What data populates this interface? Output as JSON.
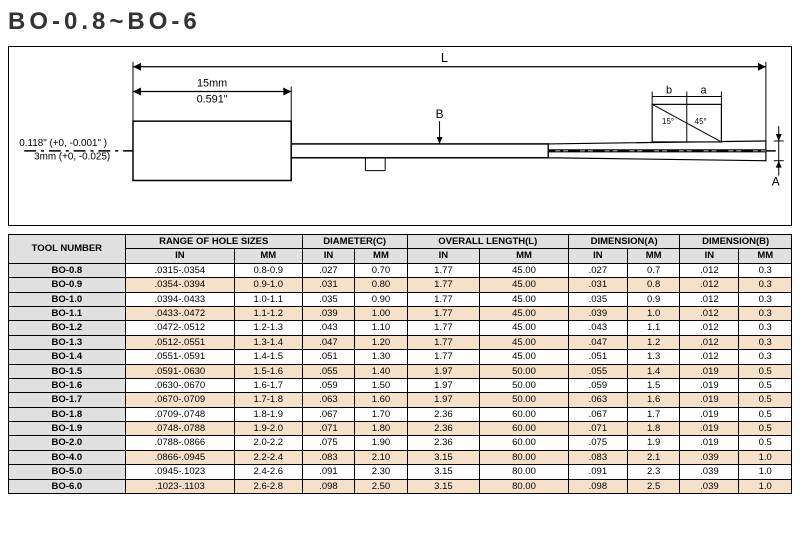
{
  "title": "BO-0.8~BO-6",
  "diagram": {
    "dim_15mm_top": "15mm",
    "dim_15mm_bot": "0.591\"",
    "dim_L": "L",
    "dim_B": "B",
    "dim_b": "b",
    "dim_a": "a",
    "dim_A": "A",
    "left_label_top": "0.118\" (+0, -0.001\" )",
    "left_label_bot": "3mm (+0, -0.025)",
    "angle1": "15°",
    "angle2": "45°",
    "colors": {
      "stroke": "#000000",
      "fill_body": "#ffffff",
      "bg": "#ffffff"
    }
  },
  "table": {
    "header_tool": "TOOL NUMBER",
    "group_headers": [
      "RANGE OF HOLE SIZES",
      "DIAMETER(C)",
      "OVERALL LENGTH(L)",
      "DIMENSION(A)",
      "DIMENSION(B)"
    ],
    "sub_headers": [
      "IN",
      "MM",
      "IN",
      "MM",
      "IN",
      "MM",
      "IN",
      "MM",
      "IN",
      "MM"
    ],
    "header_bg": "#e0e0e0",
    "row_odd_bg": "#ffffff",
    "row_even_bg": "#f7e0c8",
    "rows": [
      {
        "tool": "BO-0.8",
        "cells": [
          ".0315-.0354",
          "0.8-0.9",
          ".027",
          "0.70",
          "1.77",
          "45.00",
          ".027",
          "0.7",
          ".012",
          "0.3"
        ]
      },
      {
        "tool": "BO-0.9",
        "cells": [
          ".0354-.0394",
          "0.9-1.0",
          ".031",
          "0.80",
          "1.77",
          "45.00",
          ".031",
          "0.8",
          ".012",
          "0.3"
        ]
      },
      {
        "tool": "BO-1.0",
        "cells": [
          ".0394-.0433",
          "1.0-1.1",
          ".035",
          "0.90",
          "1.77",
          "45.00",
          ".035",
          "0.9",
          ".012",
          "0.3"
        ]
      },
      {
        "tool": "BO-1.1",
        "cells": [
          ".0433-.0472",
          "1.1-1.2",
          ".039",
          "1.00",
          "1.77",
          "45.00",
          ".039",
          "1.0",
          ".012",
          "0.3"
        ]
      },
      {
        "tool": "BO-1.2",
        "cells": [
          ".0472-.0512",
          "1.2-1.3",
          ".043",
          "1.10",
          "1.77",
          "45.00",
          ".043",
          "1.1",
          ".012",
          "0.3"
        ]
      },
      {
        "tool": "BO-1.3",
        "cells": [
          ".0512-.0551",
          "1.3-1.4",
          ".047",
          "1.20",
          "1.77",
          "45.00",
          ".047",
          "1.2",
          ".012",
          "0.3"
        ]
      },
      {
        "tool": "BO-1.4",
        "cells": [
          ".0551-.0591",
          "1.4-1.5",
          ".051",
          "1.30",
          "1.77",
          "45.00",
          ".051",
          "1.3",
          ".012",
          "0.3"
        ]
      },
      {
        "tool": "BO-1.5",
        "cells": [
          ".0591-.0630",
          "1.5-1.6",
          ".055",
          "1.40",
          "1.97",
          "50.00",
          ".055",
          "1.4",
          ".019",
          "0.5"
        ]
      },
      {
        "tool": "BO-1.6",
        "cells": [
          ".0630-.0670",
          "1.6-1.7",
          ".059",
          "1.50",
          "1.97",
          "50.00",
          ".059",
          "1.5",
          ".019",
          "0.5"
        ]
      },
      {
        "tool": "BO-1.7",
        "cells": [
          ".0670-.0709",
          "1.7-1.8",
          ".063",
          "1.60",
          "1.97",
          "50.00",
          ".063",
          "1.6",
          ".019",
          "0.5"
        ]
      },
      {
        "tool": "BO-1.8",
        "cells": [
          ".0709-.0748",
          "1.8-1.9",
          ".067",
          "1.70",
          "2.36",
          "60.00",
          ".067",
          "1.7",
          ".019",
          "0.5"
        ]
      },
      {
        "tool": "BO-1.9",
        "cells": [
          ".0748-.0788",
          "1.9-2.0",
          ".071",
          "1.80",
          "2.36",
          "60.00",
          ".071",
          "1.8",
          ".019",
          "0.5"
        ]
      },
      {
        "tool": "BO-2.0",
        "cells": [
          ".0788-.0866",
          "2.0-2.2",
          ".075",
          "1.90",
          "2.36",
          "60.00",
          ".075",
          "1.9",
          ".019",
          "0.5"
        ]
      },
      {
        "tool": "BO-4.0",
        "cells": [
          ".0866-.0945",
          "2.2-2.4",
          ".083",
          "2.10",
          "3.15",
          "80.00",
          ".083",
          "2.1",
          ".039",
          "1.0"
        ]
      },
      {
        "tool": "BO-5.0",
        "cells": [
          ".0945-.1023",
          "2.4-2.6",
          ".091",
          "2.30",
          "3.15",
          "80.00",
          ".091",
          "2.3",
          ".039",
          "1.0"
        ]
      },
      {
        "tool": "BO-6.0",
        "cells": [
          ".1023-.1103",
          "2.6-2.8",
          ".098",
          "2.50",
          "3.15",
          "80.00",
          ".098",
          "2.5",
          ".039",
          "1.0"
        ]
      }
    ]
  }
}
